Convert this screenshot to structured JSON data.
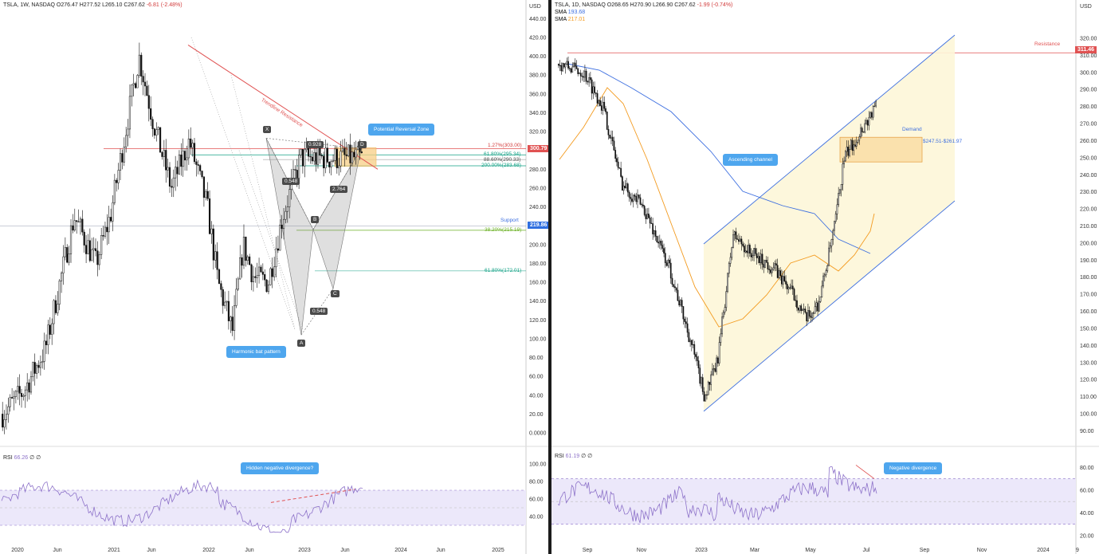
{
  "left": {
    "header": {
      "symbol": "TSLA, 1W, NASDAQ",
      "ohlc": "O276.47 H277.52 L265.10 C267.62",
      "change": "-6.81 (-2.48%)"
    },
    "currency": "USD",
    "price_axis": {
      "ticks": [
        "440.00",
        "420.00",
        "400.00",
        "380.00",
        "360.00",
        "340.00",
        "320.00",
        "300.00",
        "280.00",
        "260.00",
        "240.00",
        "220.00",
        "200.00",
        "180.00",
        "160.00",
        "140.00",
        "120.00",
        "100.00",
        "80.00",
        "60.00",
        "40.00",
        "20.00",
        "0.0000"
      ]
    },
    "last_price": "300.79",
    "support_price": "219.86",
    "support_label": "Support",
    "trendline_label": "Trendline Resistance",
    "fib_levels": [
      {
        "text": "1.27%(303.00)",
        "color": "#d23c3c"
      },
      {
        "text": "61.80%(295.34)",
        "color": "#12a185"
      },
      {
        "text": "88.60%(290.33)",
        "color": "#4a4a4a"
      },
      {
        "text": "200.00%(283.68)",
        "color": "#12a185"
      },
      {
        "text": "38.20%(215.19)",
        "color": "#6ab023"
      },
      {
        "text": "61.80%(172.01)",
        "color": "#12a185"
      }
    ],
    "ratios": [
      "0.928",
      "0.548",
      "2.764",
      "0.548"
    ],
    "points": [
      "X",
      "A",
      "B",
      "C",
      "D"
    ],
    "callouts": {
      "prz": "Potential Reversal Zone",
      "bat": "Harmonic bat pattern",
      "rsi_div": "Hidden negative divergence?"
    },
    "time_axis": [
      "2020",
      "Jun",
      "2021",
      "Jun",
      "2022",
      "Jun",
      "2023",
      "Jun",
      "2024",
      "Jun",
      "2025"
    ],
    "rsi": {
      "label": "RSI",
      "value": "66.26",
      "extra": "∅ ∅",
      "ticks": [
        "100.00",
        "80.00",
        "60.00",
        "40.00"
      ]
    }
  },
  "right": {
    "header": {
      "symbol": "TSLA, 1D, NASDAQ",
      "ohlc": "O268.65 H270.90 L266.90 C267.62",
      "change": "-1.99 (-0.74%)"
    },
    "currency": "USD",
    "sma1": {
      "label": "SMA",
      "value": "193.68",
      "color": "#3d6fe0"
    },
    "sma2": {
      "label": "SMA",
      "value": "217.01",
      "color": "#f39a1e"
    },
    "price_axis": {
      "ticks": [
        "320.00",
        "310.00",
        "300.00",
        "290.00",
        "280.00",
        "270.00",
        "260.00",
        "250.00",
        "240.00",
        "230.00",
        "220.00",
        "210.00",
        "200.00",
        "190.00",
        "180.00",
        "170.00",
        "160.00",
        "150.00",
        "140.00",
        "130.00",
        "120.00",
        "110.00",
        "100.00",
        "90.00"
      ]
    },
    "resistance_price": "311.46",
    "resistance_label": "Resistance",
    "demand_label": "Demand",
    "demand_range": "$247.51-$261.97",
    "callouts": {
      "channel": "Ascending channel",
      "rsi_div": "Negative divergence"
    },
    "time_axis": [
      "Sep",
      "Nov",
      "2023",
      "Mar",
      "May",
      "Jul",
      "Sep",
      "Nov",
      "2024",
      "9"
    ],
    "rsi": {
      "label": "RSI",
      "value": "61.19",
      "extra": "∅ ∅",
      "ticks": [
        "80.00",
        "60.00",
        "40.00",
        "20.00"
      ]
    }
  },
  "colors": {
    "candle": "#111111",
    "trend_red": "#e05252",
    "channel_blue": "#3d6fe0",
    "rsi_line": "#8d72c9",
    "rsi_band": "#ece8fa",
    "callout": "#4ea6ee",
    "prz_fill": "#f7cf86"
  },
  "chart_data": [
    {
      "type": "candlestick",
      "title": "TSLA, 1W, NASDAQ",
      "ylabel": "USD",
      "ylim": [
        0,
        450
      ],
      "annotations": [
        "Harmonic bat pattern",
        "Potential Reversal Zone",
        "Trendline Resistance",
        "Support 219.86"
      ],
      "close_path": [
        {
          "date": "2020-01",
          "close": 28
        },
        {
          "date": "2020-06",
          "close": 60
        },
        {
          "date": "2020-12",
          "close": 235
        },
        {
          "date": "2021-03",
          "close": 200
        },
        {
          "date": "2021-06",
          "close": 210
        },
        {
          "date": "2021-11",
          "close": 410
        },
        {
          "date": "2022-01",
          "close": 310
        },
        {
          "date": "2022-05",
          "close": 240
        },
        {
          "date": "2022-09",
          "close": 300
        },
        {
          "date": "2023-01",
          "close": 108
        },
        {
          "date": "2023-02",
          "close": 205
        },
        {
          "date": "2023-04",
          "close": 160
        },
        {
          "date": "2023-07",
          "close": 300
        }
      ]
    },
    {
      "type": "candlestick",
      "title": "TSLA, 1D, NASDAQ",
      "ylabel": "USD",
      "ylim": [
        85,
        330
      ],
      "series": [
        {
          "name": "SMA",
          "last": 193.68
        },
        {
          "name": "SMA",
          "last": 217.01
        }
      ],
      "annotations": [
        "Ascending channel",
        "Resistance 311.46",
        "Demand $247.51-$261.97"
      ],
      "close_path": [
        {
          "date": "2022-08",
          "close": 300
        },
        {
          "date": "2022-09",
          "close": 290
        },
        {
          "date": "2022-10",
          "close": 230
        },
        {
          "date": "2022-11",
          "close": 195
        },
        {
          "date": "2023-01",
          "close": 113
        },
        {
          "date": "2023-02",
          "close": 205
        },
        {
          "date": "2023-03",
          "close": 190
        },
        {
          "date": "2023-04",
          "close": 180
        },
        {
          "date": "2023-05",
          "close": 165
        },
        {
          "date": "2023-06",
          "close": 255
        },
        {
          "date": "2023-07",
          "close": 270
        }
      ]
    }
  ]
}
